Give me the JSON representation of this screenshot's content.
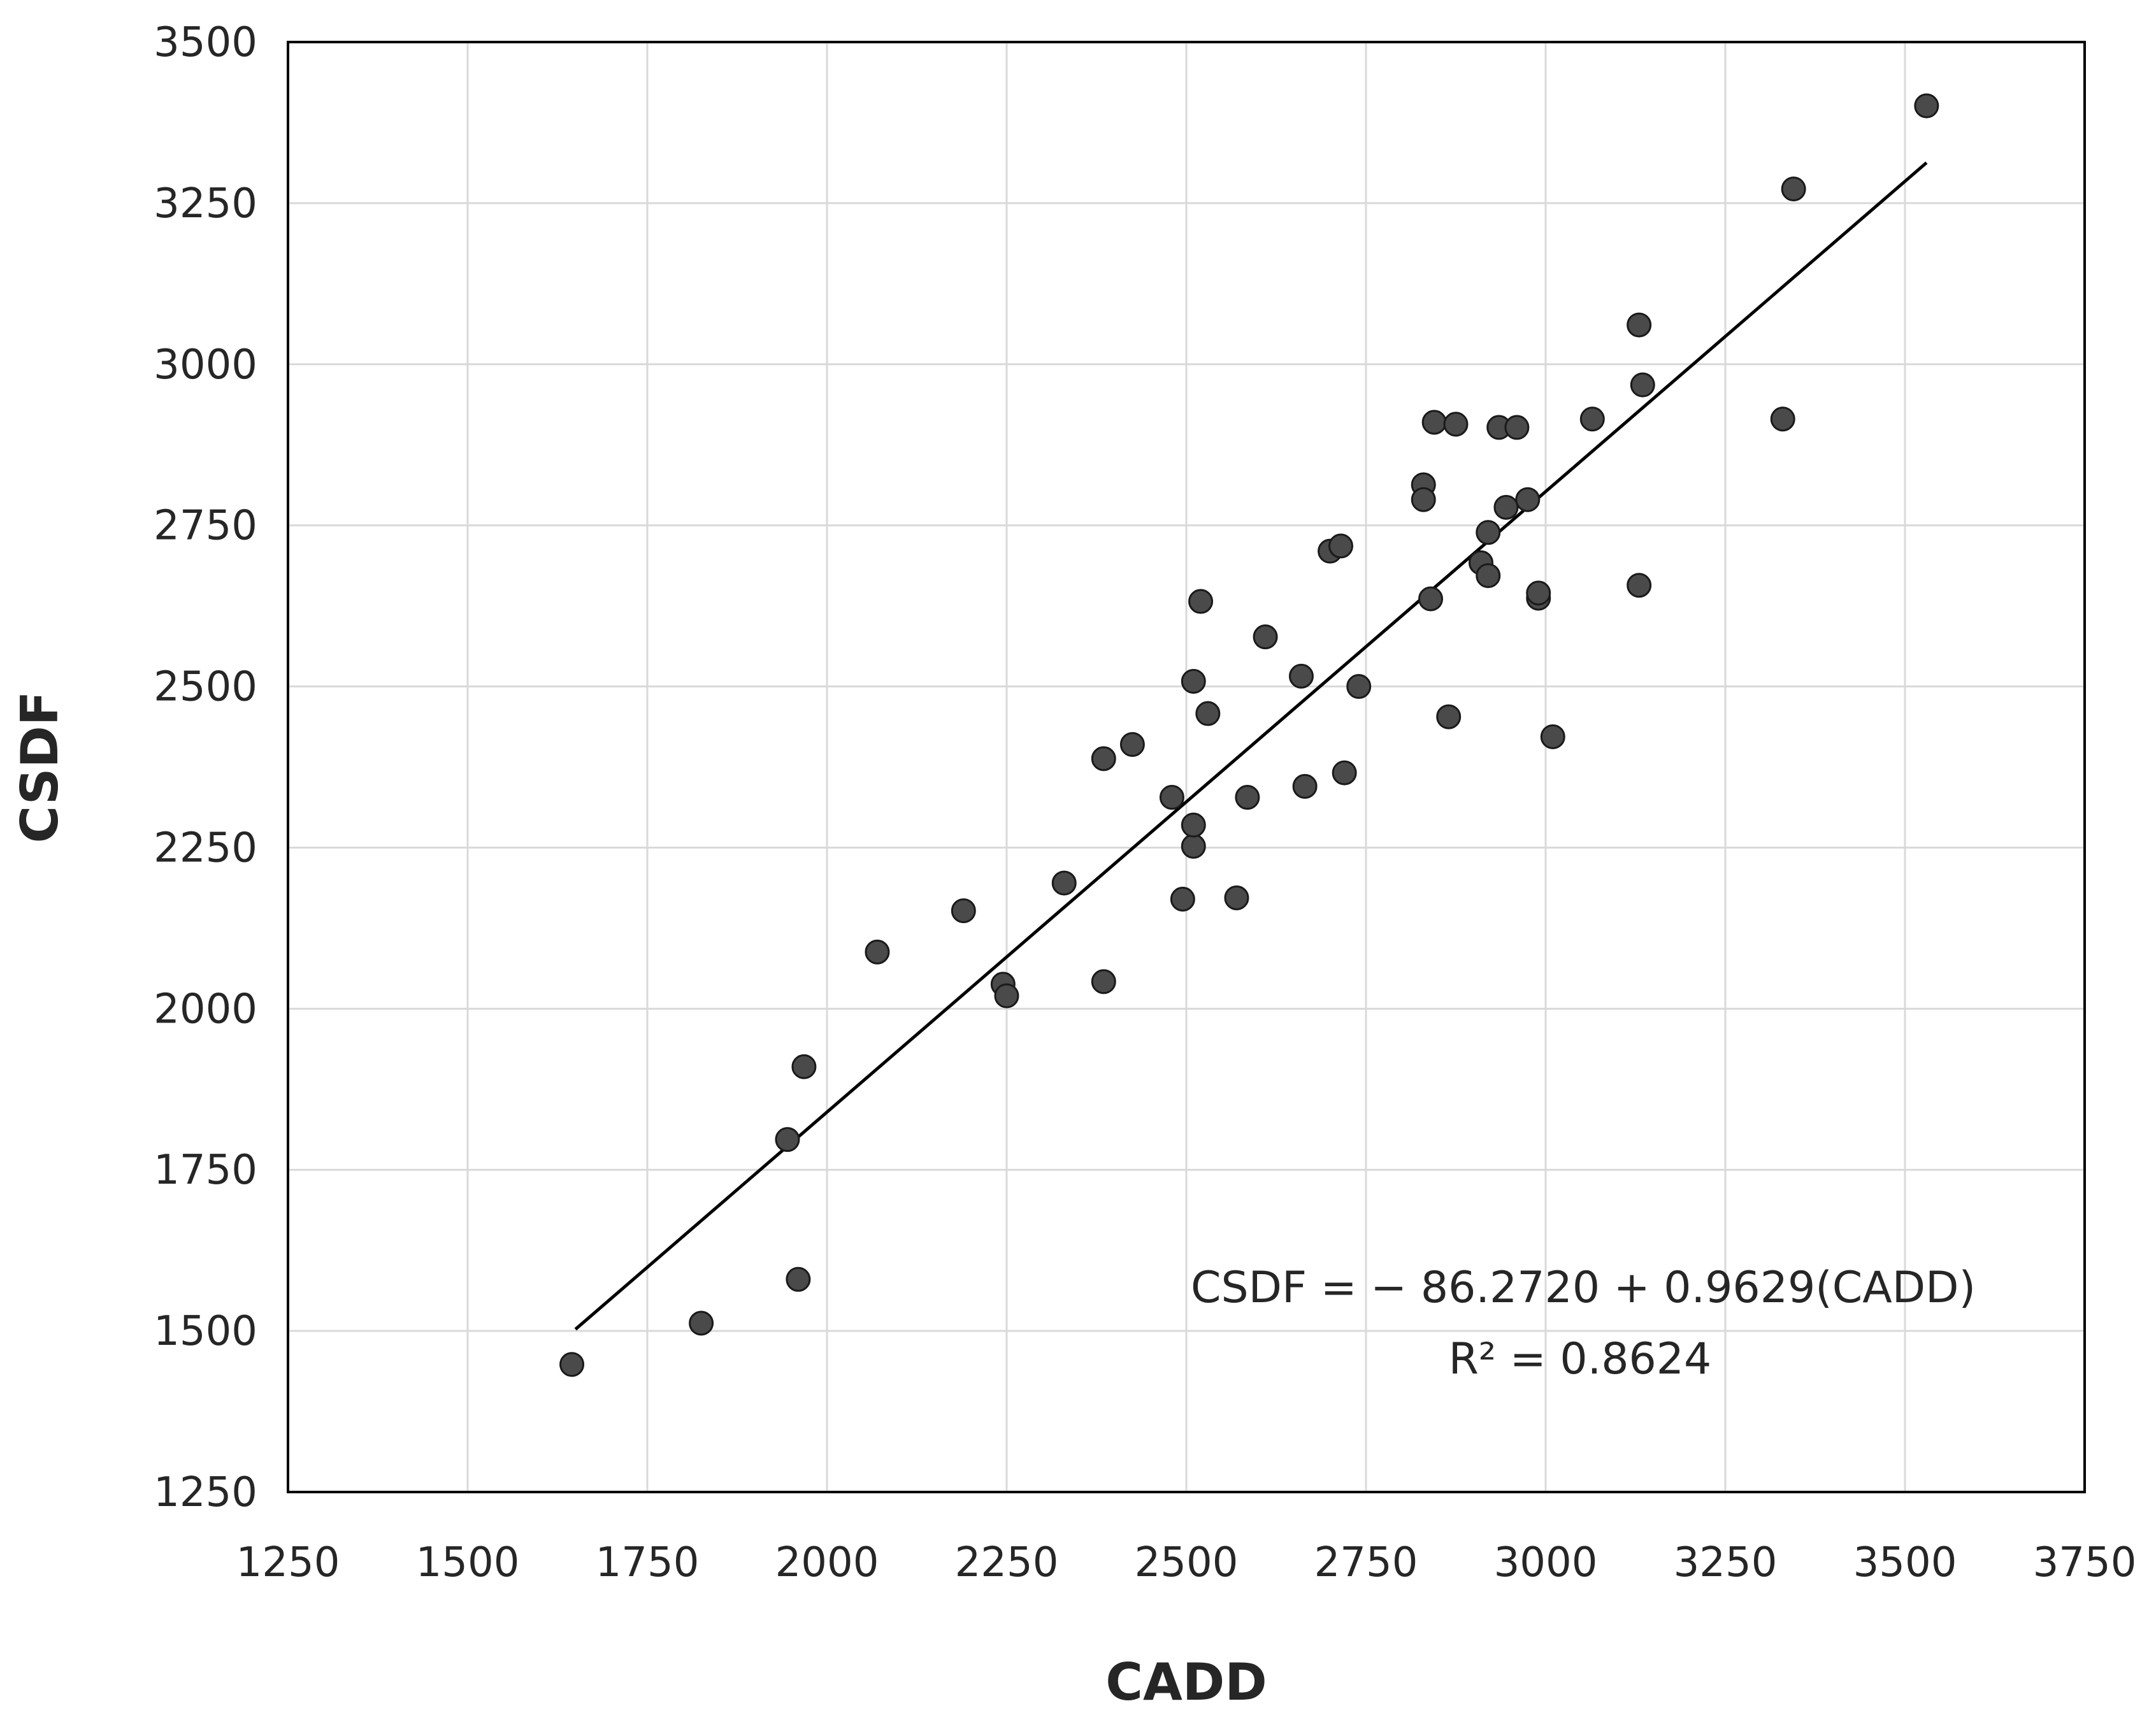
{
  "chart_data": {
    "type": "scatter",
    "title": "",
    "xlabel": "CADD",
    "ylabel": "CSDF",
    "xlim": [
      1250,
      3750
    ],
    "ylim": [
      1250,
      3500
    ],
    "x_ticks": [
      "1250",
      "1500",
      "1750",
      "2000",
      "2250",
      "2500",
      "2750",
      "3000",
      "3250",
      "3500",
      "3750"
    ],
    "y_ticks": [
      "1250",
      "1500",
      "1750",
      "2000",
      "2250",
      "2500",
      "2750",
      "3000",
      "3250",
      "3500"
    ],
    "grid": true,
    "legend": "none",
    "marker_color": "#4a4a4a",
    "line_color": "#000000",
    "points": [
      [
        1645,
        1448
      ],
      [
        1825,
        1512
      ],
      [
        1960,
        1580
      ],
      [
        1945,
        1797
      ],
      [
        1968,
        1910
      ],
      [
        2070,
        2088
      ],
      [
        2190,
        2152
      ],
      [
        2245,
        2038
      ],
      [
        2250,
        2020
      ],
      [
        2330,
        2195
      ],
      [
        2385,
        2042
      ],
      [
        2385,
        2388
      ],
      [
        2425,
        2410
      ],
      [
        2480,
        2328
      ],
      [
        2495,
        2170
      ],
      [
        2510,
        2252
      ],
      [
        2510,
        2285
      ],
      [
        2510,
        2508
      ],
      [
        2520,
        2632
      ],
      [
        2530,
        2458
      ],
      [
        2570,
        2172
      ],
      [
        2585,
        2328
      ],
      [
        2610,
        2577
      ],
      [
        2660,
        2516
      ],
      [
        2665,
        2345
      ],
      [
        2700,
        2710
      ],
      [
        2715,
        2718
      ],
      [
        2720,
        2366
      ],
      [
        2740,
        2500
      ],
      [
        2830,
        2813
      ],
      [
        2830,
        2790
      ],
      [
        2840,
        2636
      ],
      [
        2845,
        2910
      ],
      [
        2865,
        2453
      ],
      [
        2875,
        2907
      ],
      [
        2910,
        2692
      ],
      [
        2920,
        2672
      ],
      [
        2920,
        2739
      ],
      [
        2935,
        2902
      ],
      [
        2945,
        2778
      ],
      [
        2960,
        2902
      ],
      [
        2975,
        2790
      ],
      [
        2990,
        2637
      ],
      [
        2990,
        2645
      ],
      [
        3010,
        2422
      ],
      [
        3065,
        2915
      ],
      [
        3130,
        3061
      ],
      [
        3130,
        2657
      ],
      [
        3135,
        2968
      ],
      [
        3330,
        2915
      ],
      [
        3345,
        3272
      ],
      [
        3530,
        3401
      ]
    ],
    "regression": {
      "intercept": -86.272,
      "slope": 0.9629,
      "x_range": [
        1650,
        3530
      ],
      "equation": "CSDF = − 86.2720 + 0.9629(CADD)",
      "r2": "R² = 0.8624"
    }
  }
}
